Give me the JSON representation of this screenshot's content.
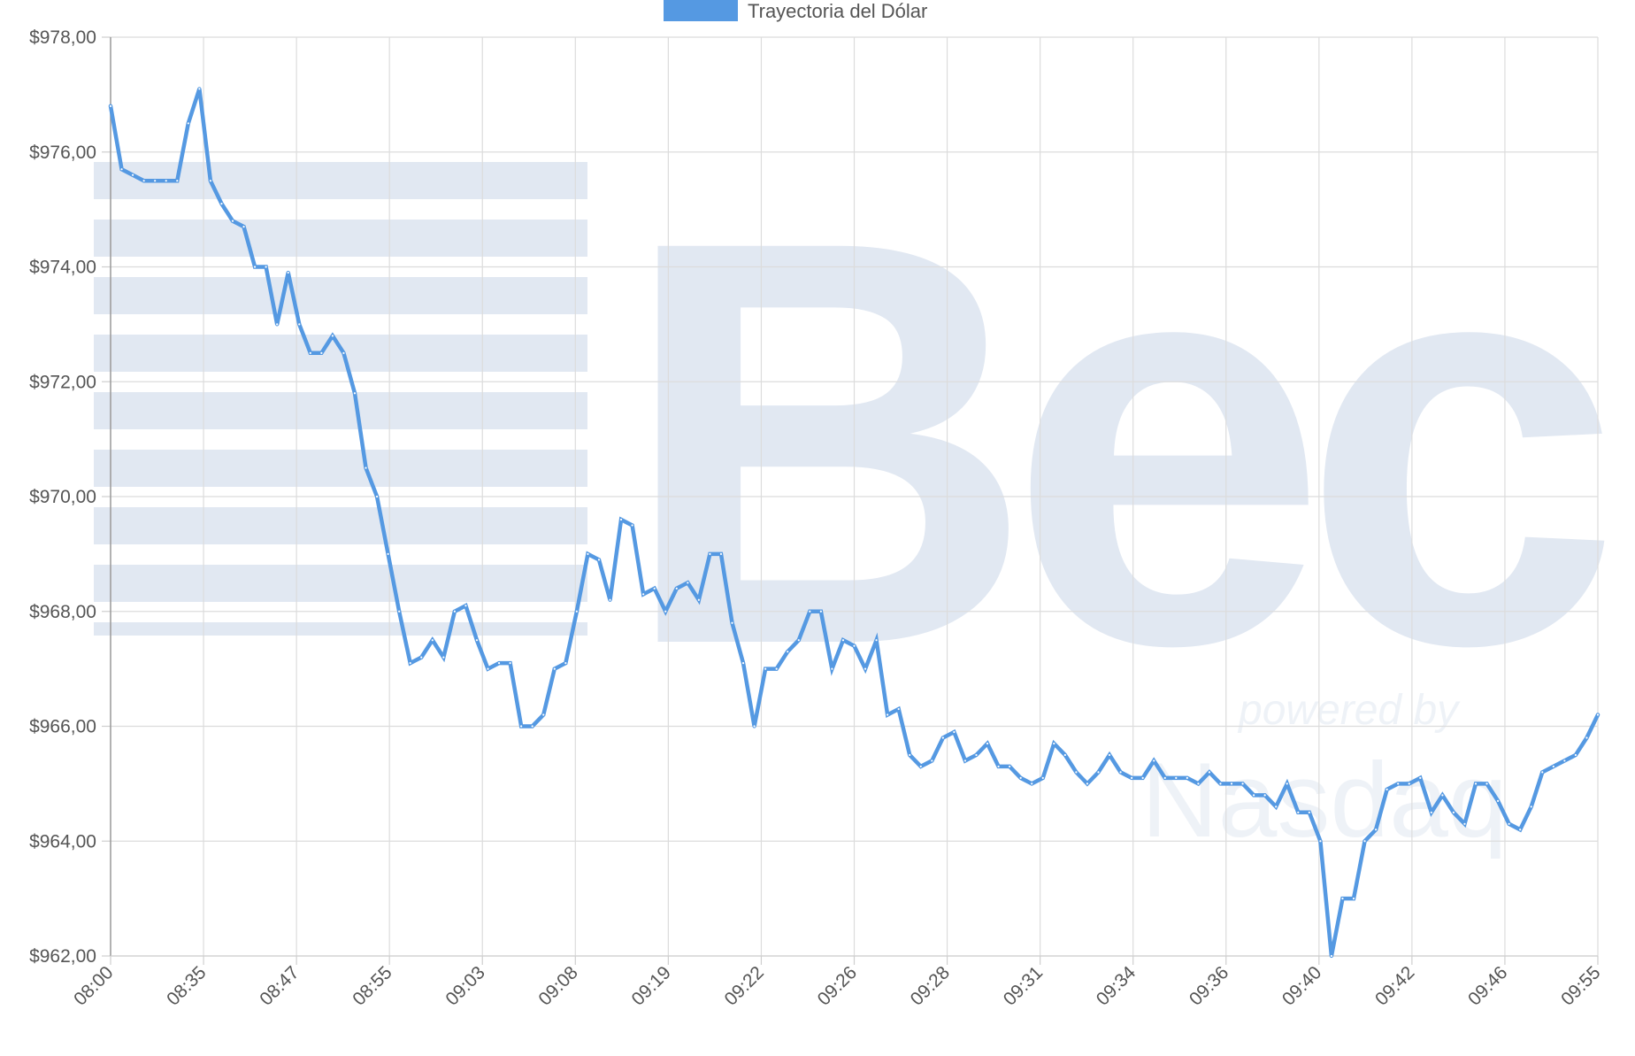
{
  "chart_data": {
    "type": "line",
    "legend": {
      "position": "top-center",
      "color": "#5599e2"
    },
    "series": [
      {
        "name": "Trayectoria del Dólar",
        "color": "#5599e2",
        "values": [
          976.8,
          975.7,
          975.6,
          975.5,
          975.5,
          975.5,
          975.5,
          976.5,
          977.1,
          975.5,
          975.1,
          974.8,
          974.7,
          974.0,
          974.0,
          973.0,
          973.9,
          973.0,
          972.5,
          972.5,
          972.8,
          972.5,
          971.8,
          970.5,
          970.0,
          969.0,
          968.0,
          967.1,
          967.2,
          967.5,
          967.2,
          968.0,
          968.1,
          967.5,
          967.0,
          967.1,
          967.1,
          966.0,
          966.0,
          966.2,
          967.0,
          967.1,
          968.0,
          969.0,
          968.9,
          968.2,
          969.6,
          969.5,
          968.3,
          968.4,
          968.0,
          968.4,
          968.5,
          968.2,
          969.0,
          969.0,
          967.8,
          967.1,
          966.0,
          967.0,
          967.0,
          967.3,
          967.5,
          968.0,
          968.0,
          967.0,
          967.5,
          967.4,
          967.0,
          967.5,
          966.2,
          966.3,
          965.5,
          965.3,
          965.4,
          965.8,
          965.9,
          965.4,
          965.5,
          965.7,
          965.3,
          965.3,
          965.1,
          965.0,
          965.1,
          965.7,
          965.5,
          965.2,
          965.0,
          965.2,
          965.5,
          965.2,
          965.1,
          965.1,
          965.4,
          965.1,
          965.1,
          965.1,
          965.0,
          965.2,
          965.0,
          965.0,
          965.0,
          964.8,
          964.8,
          964.6,
          965.0,
          964.5,
          964.5,
          964.0,
          962.0,
          963.0,
          963.0,
          964.0,
          964.2,
          964.9,
          965.0,
          965.0,
          965.1,
          964.5,
          964.8,
          964.5,
          964.3,
          965.0,
          965.0,
          964.7,
          964.3,
          964.2,
          964.6,
          965.2,
          965.3,
          965.4,
          965.5,
          965.8,
          966.2
        ]
      }
    ],
    "x_tick_labels": [
      "08:00",
      "08:35",
      "08:47",
      "08:55",
      "09:03",
      "09:08",
      "09:19",
      "09:22",
      "09:26",
      "09:28",
      "09:31",
      "09:34",
      "09:36",
      "09:40",
      "09:42",
      "09:46",
      "09:55"
    ],
    "y_ticks": [
      962,
      964,
      966,
      968,
      970,
      972,
      974,
      976,
      978
    ],
    "y_tick_labels": [
      "$962,00",
      "$964,00",
      "$966,00",
      "$968,00",
      "$970,00",
      "$972,00",
      "$974,00",
      "$976,00",
      "$978,00"
    ],
    "ylim": [
      962,
      978
    ],
    "grid": true,
    "xlabel": "",
    "ylabel": ""
  },
  "watermark": {
    "text": "Bec",
    "subtext": "powered by",
    "subtext2": "Nasdaq",
    "color": "#e1e8f2"
  }
}
